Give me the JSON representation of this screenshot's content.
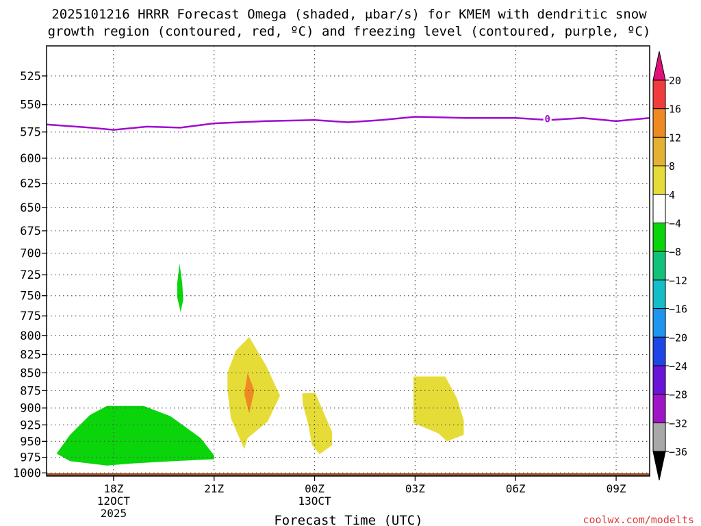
{
  "title_line1": "2025101216 HRRR Forecast Omega (shaded, μbar/s) for KMEM with dendritic snow",
  "title_line2": "growth region (contoured, red, ºC) and freezing level (contoured, purple, ºC)",
  "watermark": "coolwx.com/modelts",
  "chart_data": {
    "type": "heatmap",
    "title": "2025101216 HRRR Forecast Omega (shaded, μbar/s) for KMEM with dendritic snow growth region (contoured, red, ºC) and freezing level (contoured, purple, ºC)",
    "xlabel": "Forecast Time (UTC)",
    "ylabel": "",
    "x_ticks": [
      {
        "hour": 18,
        "lines": [
          "18Z",
          "12OCT",
          "2025"
        ]
      },
      {
        "hour": 21,
        "lines": [
          "21Z"
        ]
      },
      {
        "hour": 24,
        "lines": [
          "00Z",
          "13OCT"
        ]
      },
      {
        "hour": 27,
        "lines": [
          "03Z"
        ]
      },
      {
        "hour": 30,
        "lines": [
          "06Z"
        ]
      },
      {
        "hour": 33,
        "lines": [
          "09Z"
        ]
      }
    ],
    "xlim_hours": [
      16,
      34
    ],
    "y_ticks": [
      525,
      550,
      575,
      600,
      625,
      650,
      675,
      700,
      725,
      750,
      775,
      800,
      825,
      850,
      875,
      900,
      925,
      950,
      975,
      1000
    ],
    "ylim_mb": [
      500,
      1005
    ],
    "y_scale": "log-pressure",
    "grid": true,
    "colorbar": {
      "labels": [
        "20",
        "16",
        "12",
        "8",
        "4",
        "-4",
        "-8",
        "-12",
        "-16",
        "-20",
        "-24",
        "-28",
        "-32",
        "-36"
      ],
      "bins": [
        {
          "range": [
            16,
            20
          ],
          "color": "#f03c3c"
        },
        {
          "range": [
            12,
            16
          ],
          "color": "#ef8a22"
        },
        {
          "range": [
            8,
            12
          ],
          "color": "#e4b232"
        },
        {
          "range": [
            4,
            8
          ],
          "color": "#e6dc37"
        },
        {
          "range": [
            -4,
            4
          ],
          "color": "#ffffff"
        },
        {
          "range": [
            -8,
            -4
          ],
          "color": "#0ad40a"
        },
        {
          "range": [
            -12,
            -8
          ],
          "color": "#12c27a"
        },
        {
          "range": [
            -16,
            -12
          ],
          "color": "#14bec8"
        },
        {
          "range": [
            -20,
            -16
          ],
          "color": "#1e96f0"
        },
        {
          "range": [
            -24,
            -20
          ],
          "color": "#1e46e6"
        },
        {
          "range": [
            -28,
            -24
          ],
          "color": "#6a14d8"
        },
        {
          "range": [
            -32,
            -28
          ],
          "color": "#a014c8"
        },
        {
          "range": [
            -36,
            -32
          ],
          "color": "#a8a8a8"
        }
      ],
      "over_color": "#e0127a",
      "under_color": "#000000"
    },
    "shaded_regions": [
      {
        "value_bin": "-8 to -4",
        "color": "#0ad40a",
        "points": [
          [
            16.3,
            969
          ],
          [
            16.7,
            940
          ],
          [
            17.3,
            910
          ],
          [
            17.8,
            897
          ],
          [
            18.9,
            897
          ],
          [
            19.7,
            912
          ],
          [
            20.6,
            945
          ],
          [
            21.0,
            972
          ],
          [
            21.0,
            978
          ],
          [
            19.8,
            981
          ],
          [
            18.5,
            985
          ],
          [
            17.8,
            988
          ],
          [
            16.7,
            981
          ]
        ]
      },
      {
        "value_bin": "-8 to -4",
        "color": "#0ad40a",
        "points": [
          [
            19.97,
            712
          ],
          [
            20.05,
            735
          ],
          [
            20.08,
            755
          ],
          [
            20.0,
            770
          ],
          [
            19.9,
            752
          ],
          [
            19.9,
            735
          ]
        ]
      },
      {
        "value_bin": "4 to 8",
        "color": "#e6dc37",
        "points": [
          [
            21.4,
            850
          ],
          [
            21.65,
            820
          ],
          [
            22.05,
            802
          ],
          [
            22.55,
            840
          ],
          [
            22.97,
            882
          ],
          [
            22.6,
            920
          ],
          [
            22.0,
            945
          ],
          [
            21.9,
            962
          ],
          [
            21.5,
            915
          ],
          [
            21.4,
            875
          ]
        ]
      },
      {
        "value_bin": "12 to 16",
        "color": "#ef8a22",
        "points": [
          [
            22.0,
            850
          ],
          [
            22.2,
            875
          ],
          [
            22.05,
            908
          ],
          [
            21.9,
            880
          ]
        ]
      },
      {
        "value_bin": "4 to 8",
        "color": "#e6dc37",
        "points": [
          [
            23.63,
            879
          ],
          [
            24.02,
            878
          ],
          [
            24.3,
            910
          ],
          [
            24.52,
            935
          ],
          [
            24.52,
            956
          ],
          [
            24.15,
            970
          ],
          [
            23.92,
            955
          ],
          [
            23.8,
            922
          ],
          [
            23.65,
            895
          ]
        ]
      },
      {
        "value_bin": "4 to 8",
        "color": "#e6dc37",
        "points": [
          [
            26.95,
            855
          ],
          [
            27.9,
            855
          ],
          [
            28.25,
            886
          ],
          [
            28.45,
            918
          ],
          [
            28.45,
            940
          ],
          [
            27.95,
            950
          ],
          [
            27.7,
            938
          ],
          [
            26.95,
            922
          ]
        ]
      }
    ],
    "freezing_level": {
      "color": "#9f0cd0",
      "label": "0",
      "label_hour": 30.95,
      "points": [
        [
          16,
          568
        ],
        [
          17.3,
          571
        ],
        [
          18.0,
          573
        ],
        [
          19.0,
          570
        ],
        [
          20.0,
          571
        ],
        [
          21.0,
          567
        ],
        [
          22.5,
          565
        ],
        [
          24.0,
          564
        ],
        [
          25.0,
          566
        ],
        [
          26.0,
          564
        ],
        [
          27.0,
          561
        ],
        [
          28.5,
          562
        ],
        [
          30.0,
          562
        ],
        [
          31.0,
          564
        ],
        [
          32.0,
          562
        ],
        [
          33.0,
          565
        ],
        [
          34.0,
          562
        ]
      ]
    },
    "ground": {
      "color": "#a0522d",
      "top_mb": 1000
    }
  }
}
